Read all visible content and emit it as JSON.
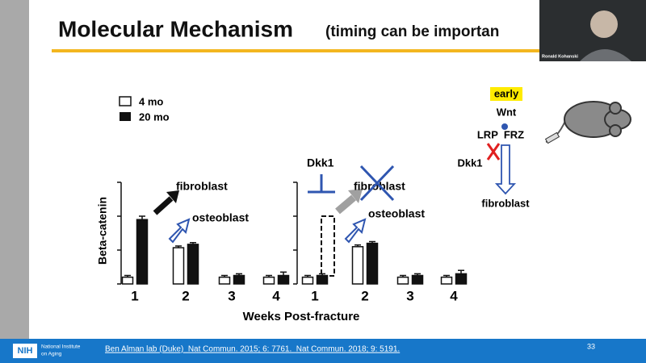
{
  "slide": {
    "title": "Molecular Mechanism",
    "subtitle": "(timing can be importan"
  },
  "webcam": {
    "name": "Ronald Kohanski"
  },
  "chart_data": [
    {
      "type": "bar",
      "y_label": "Beta-catenin",
      "x_label": "Weeks Post-fracture",
      "categories": [
        "1",
        "2",
        "3",
        "4"
      ],
      "series": [
        {
          "name": "4 mo",
          "color": "#ffffff",
          "values": [
            0.2,
            1.07,
            0.2,
            0.2
          ],
          "errors": [
            0.05,
            0.05,
            0.05,
            0.05
          ]
        },
        {
          "name": "20 mo",
          "color": "#111111",
          "values": [
            1.9,
            1.17,
            0.25,
            0.25
          ],
          "errors": [
            0.1,
            0.05,
            0.05,
            0.1
          ]
        }
      ],
      "ylim": [
        0,
        3
      ],
      "yticks": [
        0,
        1,
        2,
        3
      ],
      "annotations": [
        "fibroblast",
        "osteoblast"
      ]
    },
    {
      "type": "bar",
      "categories": [
        "1",
        "2",
        "3",
        "4"
      ],
      "series": [
        {
          "color": "#ffffff",
          "values": [
            0.2,
            1.1,
            0.2,
            0.2
          ],
          "errors": [
            0.05,
            0.05,
            0.05,
            0.05
          ]
        },
        {
          "color": "#111111",
          "values": [
            0.25,
            1.2,
            0.25,
            0.3
          ],
          "errors": [
            0.05,
            0.05,
            0.05,
            0.1
          ]
        }
      ],
      "ylim": [
        0,
        3
      ],
      "yticks": [
        0,
        1,
        2,
        3
      ],
      "annotations": [
        "Dkk1",
        "fibroblast",
        "osteoblast"
      ]
    }
  ],
  "diagram": {
    "stage": "early",
    "ligand": "Wnt",
    "receptors": "LRP  FRZ",
    "inhibitor": "Dkk1",
    "outcome": "fibroblast"
  },
  "footer": {
    "logo": "NIH",
    "institute": [
      "National Institute",
      "on Aging"
    ],
    "citation": "Ben Alman lab (Duke)  Nat Commun. 2015; 6: 7761.  Nat Commun. 2018; 9: 5191.",
    "page": "33"
  }
}
